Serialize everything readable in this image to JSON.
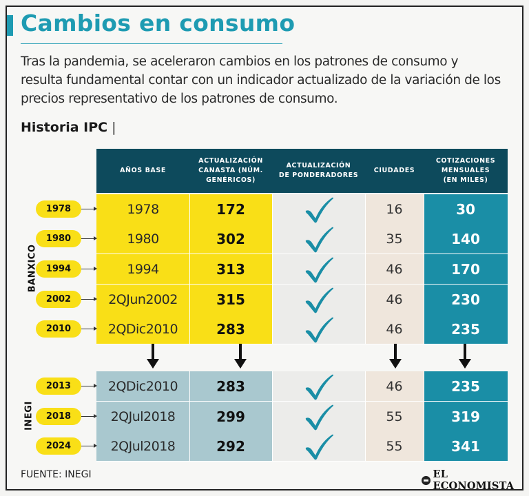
{
  "title": "Cambios en consumo",
  "intro": "Tras la pandemia, se aceleraron cambios en los patrones de consumo y resulta fundamental contar con un indicador actualizado de la variación de los precios representativo de los patrones de consumo.",
  "subtitle": "Historia IPC",
  "subtitle_sep": "|",
  "headers": {
    "base": "AÑOS BASE",
    "canasta": "ACTUALIZACIÓN\nCANASTA (NÚM.\nGENÉRICOS)",
    "ponderadores": "ACTUALIZACIÓN\nDE PONDERADORES",
    "ciudades": "CIUDADES",
    "cotizaciones": "COTIZACIONES\nMENSUALES\n(EN MILES)"
  },
  "groups": {
    "banxico": "BANXICO",
    "inegi": "INEGI"
  },
  "rows": [
    {
      "year": "1978",
      "base": "1978",
      "canasta": "172",
      "ciudades": "16",
      "cotizaciones": "30",
      "group": "banxico"
    },
    {
      "year": "1980",
      "base": "1980",
      "canasta": "302",
      "ciudades": "35",
      "cotizaciones": "140",
      "group": "banxico"
    },
    {
      "year": "1994",
      "base": "1994",
      "canasta": "313",
      "ciudades": "46",
      "cotizaciones": "170",
      "group": "banxico"
    },
    {
      "year": "2002",
      "base": "2QJun2002",
      "canasta": "315",
      "ciudades": "46",
      "cotizaciones": "230",
      "group": "banxico"
    },
    {
      "year": "2010",
      "base": "2QDic2010",
      "canasta": "283",
      "ciudades": "46",
      "cotizaciones": "235",
      "group": "banxico"
    },
    {
      "year": "2013",
      "base": "2QDic2010",
      "canasta": "283",
      "ciudades": "46",
      "cotizaciones": "235",
      "group": "inegi"
    },
    {
      "year": "2018",
      "base": "2QJul2018",
      "canasta": "299",
      "ciudades": "55",
      "cotizaciones": "319",
      "group": "inegi"
    },
    {
      "year": "2024",
      "base": "2QJul2018",
      "canasta": "292",
      "ciudades": "55",
      "cotizaciones": "341",
      "group": "inegi"
    }
  ],
  "icons": {
    "ponderadores_mark": "checkmark-icon",
    "transition": "arrow-down-icon"
  },
  "colors": {
    "accent": "#1e9bb2",
    "header": "#0d4a5c",
    "highlight": "#f9df17",
    "teal": "#1a8ea6",
    "light_blue": "#a9c8cf",
    "check": "#1a8ea6"
  },
  "source": "FUENTE: INEGI",
  "logo": "EL ECONOMISTA"
}
